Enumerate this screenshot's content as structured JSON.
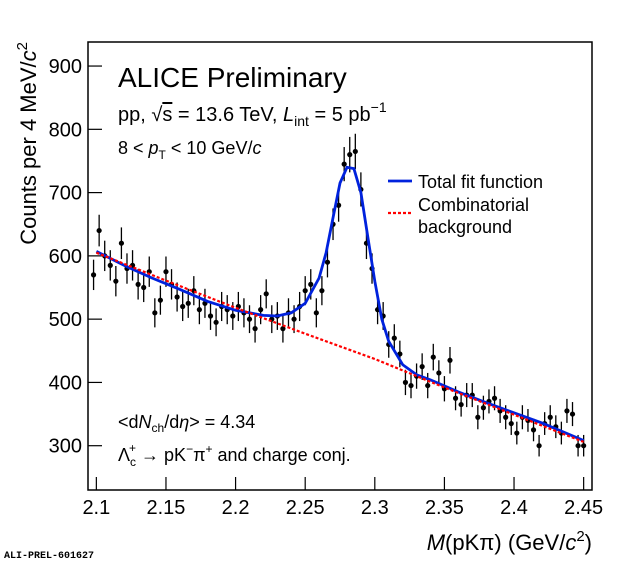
{
  "chart_data": {
    "type": "errorbar_fit",
    "title": "ALICE Preliminary",
    "energy_line": [
      "pp, ",
      "√",
      "s",
      " = 13.6 TeV, ",
      "L",
      "int",
      " = 5 pb",
      "−1"
    ],
    "pt_line": [
      "8 <  ",
      "p",
      "T",
      " < 10 GeV/",
      "c"
    ],
    "multiplicity_line": [
      "<d",
      "N",
      "ch",
      "/d",
      "η",
      "> = 4.34"
    ],
    "decay_line": [
      "Λ",
      "c",
      "+",
      "  → pK",
      "−",
      "π",
      "+",
      " and charge conj."
    ],
    "ylabel": [
      "Counts per 4 MeV/",
      "c",
      "2"
    ],
    "xlabel": [
      "M",
      "(pKπ) (GeV/",
      "c",
      "2",
      ")"
    ],
    "footer": "ALI-PREL-601627",
    "xlim": [
      2.094,
      2.456
    ],
    "ylim": [
      230,
      938
    ],
    "xticks": [
      2.1,
      2.15,
      2.2,
      2.25,
      2.3,
      2.35,
      2.4,
      2.45
    ],
    "yticks": [
      300,
      400,
      500,
      600,
      700,
      800,
      900
    ],
    "points": {
      "color": "#000000",
      "x": [
        2.098,
        2.102,
        2.106,
        2.11,
        2.114,
        2.118,
        2.122,
        2.126,
        2.13,
        2.134,
        2.138,
        2.142,
        2.146,
        2.15,
        2.154,
        2.158,
        2.162,
        2.166,
        2.17,
        2.174,
        2.178,
        2.182,
        2.186,
        2.19,
        2.194,
        2.198,
        2.202,
        2.206,
        2.21,
        2.214,
        2.218,
        2.222,
        2.226,
        2.23,
        2.234,
        2.238,
        2.242,
        2.246,
        2.25,
        2.254,
        2.258,
        2.262,
        2.266,
        2.27,
        2.274,
        2.278,
        2.282,
        2.286,
        2.29,
        2.294,
        2.298,
        2.302,
        2.306,
        2.31,
        2.314,
        2.318,
        2.322,
        2.326,
        2.33,
        2.334,
        2.338,
        2.342,
        2.346,
        2.35,
        2.354,
        2.358,
        2.362,
        2.366,
        2.37,
        2.374,
        2.378,
        2.382,
        2.386,
        2.39,
        2.394,
        2.398,
        2.402,
        2.406,
        2.41,
        2.414,
        2.418,
        2.422,
        2.426,
        2.43,
        2.434,
        2.438,
        2.442,
        2.446,
        2.45
      ],
      "values": [
        570,
        640,
        600,
        585,
        560,
        620,
        580,
        585,
        555,
        550,
        575,
        510,
        530,
        575,
        555,
        535,
        520,
        525,
        545,
        515,
        525,
        505,
        495,
        520,
        515,
        505,
        520,
        510,
        500,
        485,
        515,
        540,
        500,
        505,
        485,
        510,
        500,
        520,
        545,
        555,
        510,
        545,
        590,
        650,
        680,
        745,
        760,
        765,
        705,
        620,
        580,
        515,
        505,
        460,
        470,
        445,
        400,
        395,
        410,
        425,
        395,
        440,
        415,
        390,
        435,
        375,
        365,
        380,
        380,
        345,
        360,
        370,
        375,
        355,
        345,
        335,
        320,
        345,
        340,
        325,
        300,
        335,
        345,
        330,
        320,
        355,
        350,
        300,
        300
      ],
      "errors": [
        24,
        25,
        24,
        24,
        24,
        25,
        24,
        24,
        24,
        23,
        24,
        23,
        23,
        24,
        24,
        23,
        23,
        23,
        23,
        23,
        23,
        22,
        22,
        23,
        23,
        22,
        23,
        23,
        22,
        22,
        23,
        23,
        22,
        22,
        22,
        23,
        22,
        23,
        23,
        24,
        23,
        23,
        24,
        25,
        26,
        27,
        28,
        28,
        27,
        25,
        24,
        23,
        22,
        21,
        22,
        21,
        20,
        20,
        20,
        21,
        20,
        21,
        20,
        20,
        21,
        19,
        19,
        19,
        19,
        19,
        19,
        19,
        19,
        19,
        19,
        18,
        18,
        19,
        18,
        18,
        17,
        18,
        19,
        18,
        18,
        19,
        19,
        17,
        17
      ]
    },
    "series": [
      {
        "name": "Total fit function",
        "color": "#0022dd",
        "dash": false,
        "x": [
          2.1,
          2.12,
          2.14,
          2.16,
          2.18,
          2.2,
          2.22,
          2.23,
          2.24,
          2.25,
          2.26,
          2.265,
          2.27,
          2.275,
          2.28,
          2.285,
          2.29,
          2.295,
          2.3,
          2.305,
          2.31,
          2.32,
          2.33,
          2.34,
          2.36,
          2.38,
          2.4,
          2.42,
          2.45
        ],
        "values": [
          607,
          585,
          565,
          547,
          528,
          514,
          506,
          505,
          510,
          525,
          565,
          605,
          660,
          715,
          740,
          738,
          700,
          630,
          560,
          500,
          465,
          428,
          412,
          404,
          385,
          368,
          352,
          336,
          308
        ]
      },
      {
        "name": [
          "Combinatorial",
          "background"
        ],
        "color": "#ff0000",
        "dash": true,
        "x": [
          2.1,
          2.15,
          2.2,
          2.25,
          2.3,
          2.35,
          2.4,
          2.45
        ],
        "values": [
          605,
          561,
          518,
          477,
          437,
          392,
          349,
          306
        ]
      }
    ]
  }
}
